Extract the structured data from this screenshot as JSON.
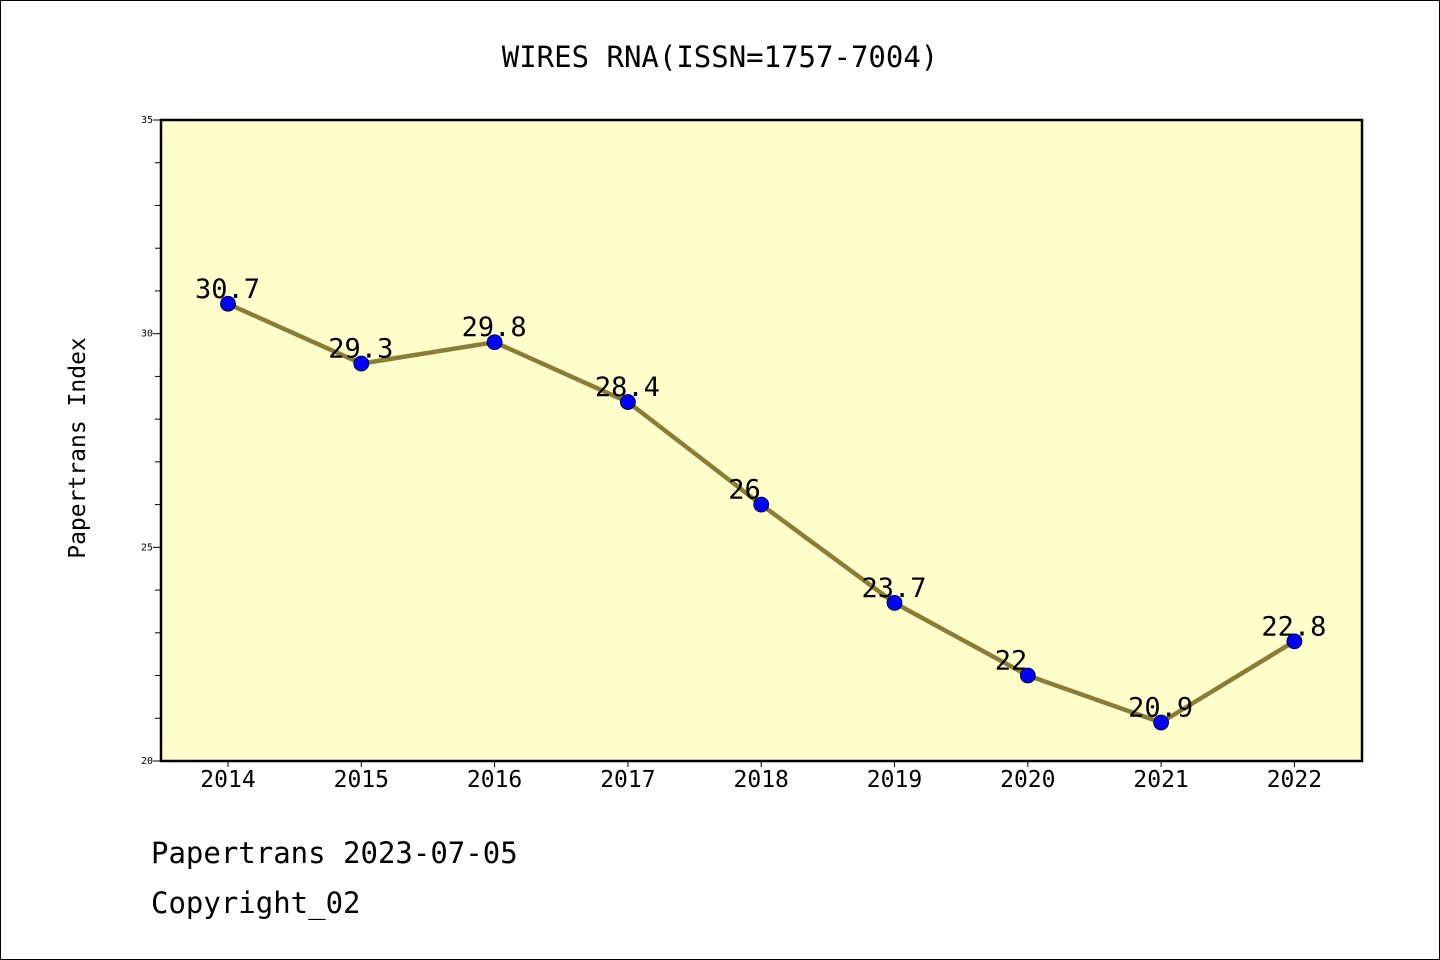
{
  "chart_data": {
    "type": "line",
    "title": "WIRES RNA(ISSN=1757-7004)",
    "xlabel": "",
    "ylabel": "Papertrans Index",
    "categories": [
      "2014",
      "2015",
      "2016",
      "2017",
      "2018",
      "2019",
      "2020",
      "2021",
      "2022"
    ],
    "values": [
      30.7,
      29.3,
      29.8,
      28.4,
      26,
      23.7,
      22,
      20.9,
      22.8
    ],
    "data_labels": [
      "30.7",
      "29.3",
      "29.8",
      "28.4",
      "26",
      "23.7",
      "22",
      "20.9",
      "22.8"
    ],
    "ylim": [
      20,
      35
    ],
    "yticks": [
      "20",
      "25",
      "30",
      "35"
    ],
    "grid": false,
    "colors": {
      "plot_background": "#ffffcc",
      "line": "#8b7d36",
      "marker": "#0000ff"
    }
  },
  "footer": {
    "date_line": "Papertrans 2023-07-05",
    "copyright_line": "Copyright_02"
  }
}
